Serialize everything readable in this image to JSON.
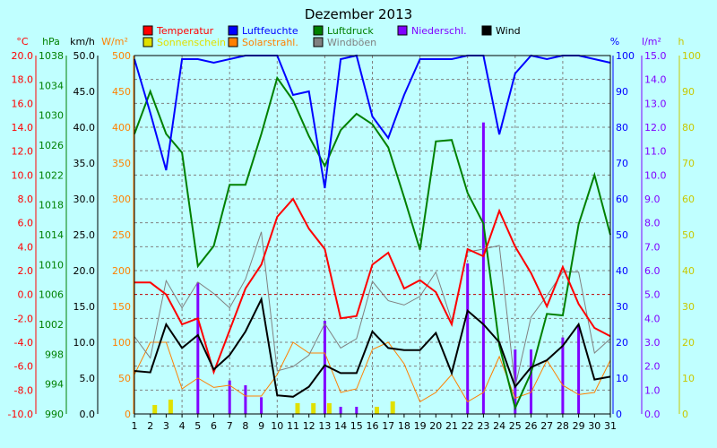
{
  "chart_data": {
    "type": "line",
    "title": "Dezember 2013",
    "x": [
      1,
      2,
      3,
      4,
      5,
      6,
      7,
      8,
      9,
      10,
      11,
      12,
      13,
      14,
      15,
      16,
      17,
      18,
      19,
      20,
      21,
      22,
      23,
      24,
      25,
      26,
      27,
      28,
      29,
      30,
      31
    ],
    "legend": [
      {
        "label": "Temperatur",
        "color": "#ff0000"
      },
      {
        "label": "Luftfeuchte",
        "color": "#0000ff"
      },
      {
        "label": "Luftdruck",
        "color": "#008000"
      },
      {
        "label": "Niederschl.",
        "color": "#8000ff"
      },
      {
        "label": "Wind",
        "color": "#000000"
      },
      {
        "label": "Sonnenschein",
        "color": "#e0e000"
      },
      {
        "label": "Solarstrahl.",
        "color": "#ff8000"
      },
      {
        "label": "Windböen",
        "color": "#808080"
      }
    ],
    "axes": {
      "temperature": {
        "unit": "°C",
        "min": -10,
        "max": 20,
        "step": 2,
        "color": "#ff0000"
      },
      "pressure": {
        "unit": "hPa",
        "min": 990,
        "max": 1038,
        "step": 4,
        "color": "#008000"
      },
      "wind": {
        "unit": "km/h",
        "min": 0,
        "max": 50,
        "step": 5,
        "color": "#000000"
      },
      "solar": {
        "unit": "W/m²",
        "min": 0,
        "max": 500,
        "step": 50,
        "color": "#ff8000"
      },
      "humidity": {
        "unit": "%",
        "min": 0,
        "max": 100,
        "step": 10,
        "color": "#0000ff"
      },
      "rain": {
        "unit": "l/m²",
        "min": 0,
        "max": 15,
        "step": 1,
        "color": "#8000ff"
      },
      "sun": {
        "unit": "h",
        "min": 0,
        "max": 100,
        "step": 10,
        "color": "#c8c800"
      }
    },
    "series": [
      {
        "name": "Temperatur",
        "axis": "temperature",
        "values": [
          1.0,
          1.0,
          0.0,
          -2.5,
          -2.0,
          -6.5,
          -3.0,
          0.5,
          2.5,
          6.5,
          8.0,
          5.5,
          3.8,
          -2.0,
          -1.8,
          2.5,
          3.5,
          0.5,
          1.2,
          0.2,
          -2.5,
          3.8,
          3.2,
          7.0,
          4.0,
          1.8,
          -1.0,
          2.3,
          -0.8,
          -2.8,
          -3.5
        ]
      },
      {
        "name": "Luftfeuchte",
        "axis": "humidity",
        "values": [
          99,
          84,
          68,
          99,
          99,
          98,
          99,
          100,
          100,
          100,
          89,
          90,
          63,
          99,
          100,
          83,
          77,
          89,
          99,
          99,
          99,
          100,
          100,
          78,
          95,
          100,
          99,
          100,
          100,
          99,
          98
        ]
      },
      {
        "name": "Luftdruck",
        "axis": "pressure",
        "values": [
          1027.5,
          1033.2,
          1027.5,
          1025.0,
          1009.8,
          1012.5,
          1020.7,
          1020.7,
          1027.5,
          1035.0,
          1032.0,
          1027.2,
          1023.2,
          1028.0,
          1030.2,
          1028.8,
          1025.7,
          1019.0,
          1012.0,
          1026.5,
          1026.7,
          1019.6,
          1015.5,
          999.2,
          990.8,
          995.5,
          1003.4,
          1003.2,
          1015.4,
          1022.0,
          1014.0
        ]
      },
      {
        "name": "Wind",
        "axis": "wind",
        "values": [
          6.0,
          5.8,
          12.5,
          9.2,
          11.0,
          6.2,
          8.2,
          11.5,
          16.0,
          2.6,
          2.4,
          3.8,
          6.8,
          5.7,
          5.7,
          11.5,
          9.2,
          8.9,
          8.9,
          11.3,
          5.7,
          14.4,
          12.5,
          10.0,
          3.8,
          6.5,
          7.5,
          9.5,
          12.5,
          4.8,
          5.2
        ]
      },
      {
        "name": "Windböen",
        "axis": "wind",
        "values": [
          10.8,
          7.8,
          18.6,
          14.8,
          18.4,
          16.8,
          14.8,
          18.8,
          25.4,
          6.0,
          6.6,
          8.2,
          12.6,
          9.2,
          10.5,
          18.5,
          15.8,
          15.2,
          16.4,
          19.8,
          13.0,
          22.6,
          23.0,
          23.5,
          3.8,
          13.5,
          16.5,
          19.8,
          19.8,
          8.5,
          10.5
        ]
      },
      {
        "name": "Solarstrahl.",
        "axis": "solar",
        "values": [
          55,
          100,
          100,
          35,
          50,
          37,
          40,
          25,
          25,
          55,
          100,
          85,
          85,
          30,
          35,
          90,
          100,
          70,
          17,
          30,
          55,
          17,
          30,
          80,
          22,
          30,
          75,
          40,
          27,
          30,
          75
        ]
      },
      {
        "name": "Niederschl.",
        "axis": "rain",
        "type": "bar",
        "values": [
          0,
          0,
          0,
          0,
          5.5,
          0,
          1.4,
          1.2,
          0.7,
          0,
          0,
          0,
          3.9,
          0.3,
          0.3,
          0,
          0,
          0,
          0,
          0,
          0,
          6.3,
          12.2,
          0,
          2.7,
          2.7,
          0,
          3.2,
          3.7,
          0,
          0
        ]
      },
      {
        "name": "Sonnenschein",
        "axis": "sun",
        "type": "bar",
        "values": [
          0,
          2.5,
          4,
          0,
          0,
          0,
          0,
          0,
          0,
          0,
          3,
          3,
          3,
          0,
          0,
          2,
          3.5,
          0,
          0,
          0,
          0,
          0,
          0,
          0,
          0,
          0,
          0,
          0,
          0,
          0,
          0
        ]
      }
    ],
    "xlim": [
      1,
      31
    ],
    "grid": true,
    "legend_position": "top"
  }
}
